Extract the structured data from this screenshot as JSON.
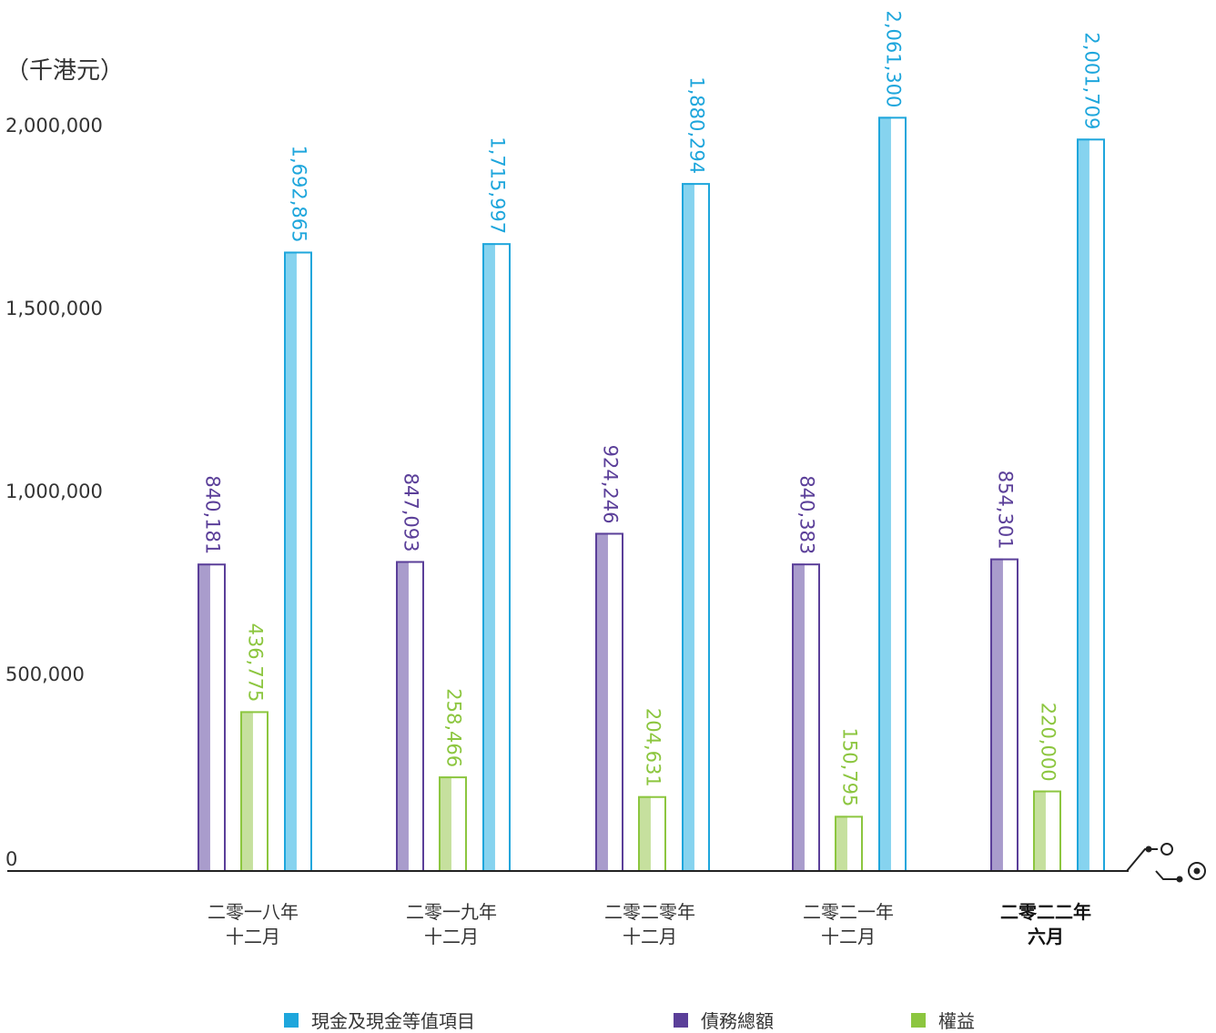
{
  "chart_data": {
    "type": "bar",
    "unit_label": "（千港元）",
    "ylim": [
      0,
      2100000
    ],
    "yticks": [
      {
        "value": 0,
        "label": "0"
      },
      {
        "value": 500000,
        "label": "500,000"
      },
      {
        "value": 1000000,
        "label": "1,000,000"
      },
      {
        "value": 1500000,
        "label": "1,500,000"
      },
      {
        "value": 2000000,
        "label": "2,000,000"
      }
    ],
    "categories": [
      {
        "line1": "二零一八年",
        "line2": "十二月",
        "bold": false
      },
      {
        "line1": "二零一九年",
        "line2": "十二月",
        "bold": false
      },
      {
        "line1": "二零二零年",
        "line2": "十二月",
        "bold": false
      },
      {
        "line1": "二零二一年",
        "line2": "十二月",
        "bold": false
      },
      {
        "line1": "二零二二年",
        "line2": "六月",
        "bold": true
      }
    ],
    "series": [
      {
        "name": "債務總額",
        "color": "#5b3f99",
        "fill": "#a99ccc",
        "values": [
          840181,
          847093,
          924246,
          840383,
          854301
        ],
        "labels": [
          "840,181",
          "847,093",
          "924,246",
          "840,383",
          "854,301"
        ]
      },
      {
        "name": "權益",
        "color": "#8cc63f",
        "fill": "#c6e09e",
        "values": [
          436775,
          258466,
          204631,
          150795,
          220000
        ],
        "labels": [
          "436,775",
          "258,466",
          "204,631",
          "150,795",
          "220,000"
        ]
      },
      {
        "name": "現金及現金等值項目",
        "color": "#1ea6dc",
        "fill": "#86d3ef",
        "values": [
          1692865,
          1715997,
          1880294,
          2061300,
          2001709
        ],
        "labels": [
          "1,692,865",
          "1,715,997",
          "1,880,294",
          "2,061,300",
          "2,001,709"
        ]
      }
    ],
    "legend": [
      {
        "name": "現金及現金等值項目",
        "color": "#1ea6dc"
      },
      {
        "name": "債務總額",
        "color": "#5b3f99"
      },
      {
        "name": "權益",
        "color": "#8cc63f"
      }
    ],
    "legend_position": "bottom",
    "grid": false
  }
}
